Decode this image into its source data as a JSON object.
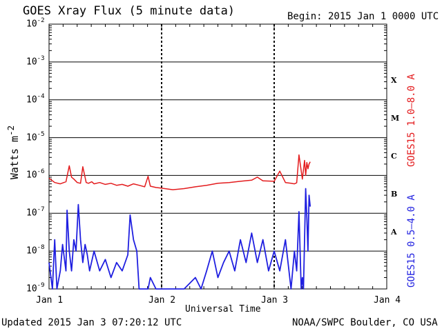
{
  "header": {
    "title": "GOES Xray Flux (5 minute data)",
    "begin": "Begin:  2015 Jan 1 0000 UTC"
  },
  "footer": {
    "updated": "Updated 2015 Jan  3 07:20:12 UTC",
    "credit": "NOAA/SWPC Boulder, CO USA"
  },
  "colors": {
    "long_channel": "#e31a1c",
    "short_channel": "#1f1fe0",
    "grid": "#000000",
    "background": "#ffffff"
  },
  "chart_data": {
    "type": "line",
    "title": "GOES Xray Flux (5 minute data)",
    "xlabel": "Universal Time",
    "ylabel": "Watts m-2",
    "y_scale": "log",
    "ylim": [
      1e-09,
      0.01
    ],
    "xlim_days": [
      0,
      3
    ],
    "x_tick_labels": [
      "Jan 1",
      "Jan 2",
      "Jan 3",
      "Jan 4"
    ],
    "y_tick_labels": [
      {
        "base": "10",
        "exp": "-2"
      },
      {
        "base": "10",
        "exp": "-3"
      },
      {
        "base": "10",
        "exp": "-4"
      },
      {
        "base": "10",
        "exp": "-5"
      },
      {
        "base": "10",
        "exp": "-6"
      },
      {
        "base": "10",
        "exp": "-7"
      },
      {
        "base": "10",
        "exp": "-8"
      },
      {
        "base": "10",
        "exp": "-9"
      }
    ],
    "flare_classes": [
      {
        "label": "X",
        "flux": 0.0001
      },
      {
        "label": "M",
        "flux": 1e-05
      },
      {
        "label": "C",
        "flux": 1e-06
      },
      {
        "label": "B",
        "flux": 1e-07
      },
      {
        "label": "A",
        "flux": 1e-08
      }
    ],
    "grid": true,
    "series": [
      {
        "name": "GOES15 1.0-8.0 A",
        "color": "#e31a1c",
        "x": [
          0.0,
          0.05,
          0.1,
          0.15,
          0.18,
          0.2,
          0.22,
          0.25,
          0.28,
          0.3,
          0.33,
          0.35,
          0.38,
          0.4,
          0.45,
          0.5,
          0.55,
          0.6,
          0.65,
          0.7,
          0.75,
          0.8,
          0.85,
          0.88,
          0.9,
          0.95,
          1.0,
          1.05,
          1.1,
          1.2,
          1.3,
          1.4,
          1.5,
          1.6,
          1.7,
          1.8,
          1.85,
          1.9,
          2.0,
          2.05,
          2.1,
          2.15,
          2.18,
          2.2,
          2.22,
          2.25,
          2.27,
          2.28,
          2.29,
          2.3,
          2.31,
          2.32
        ],
        "y": [
          8.5e-07,
          6.5e-07,
          6e-07,
          6.8e-07,
          1.8e-06,
          9e-07,
          8e-07,
          6.5e-07,
          6.2e-07,
          1.7e-06,
          6.5e-07,
          6.2e-07,
          6.8e-07,
          6e-07,
          6.5e-07,
          5.8e-07,
          6.2e-07,
          5.5e-07,
          5.8e-07,
          5.2e-07,
          6e-07,
          5.5e-07,
          5e-07,
          9.5e-07,
          5.2e-07,
          4.8e-07,
          4.6e-07,
          4.4e-07,
          4.2e-07,
          4.5e-07,
          5e-07,
          5.5e-07,
          6.2e-07,
          6.5e-07,
          7e-07,
          7.5e-07,
          9e-07,
          7.2e-07,
          7e-07,
          1.3e-06,
          6.5e-07,
          6.2e-07,
          6e-07,
          6.4e-07,
          3.5e-06,
          8e-07,
          2.5e-06,
          1e-06,
          2.2e-06,
          1.5e-06,
          2e-06,
          2.3e-06
        ]
      },
      {
        "name": "GOES15 0.5-4.0 A",
        "color": "#1f1fe0",
        "x": [
          0.0,
          0.03,
          0.05,
          0.07,
          0.1,
          0.12,
          0.15,
          0.16,
          0.18,
          0.2,
          0.22,
          0.24,
          0.26,
          0.28,
          0.3,
          0.32,
          0.34,
          0.36,
          0.4,
          0.45,
          0.5,
          0.55,
          0.6,
          0.65,
          0.7,
          0.72,
          0.75,
          0.78,
          0.8,
          0.82,
          0.85,
          0.88,
          0.9,
          0.95,
          1.0,
          1.1,
          1.2,
          1.3,
          1.35,
          1.4,
          1.45,
          1.5,
          1.55,
          1.6,
          1.65,
          1.7,
          1.75,
          1.8,
          1.85,
          1.9,
          1.95,
          2.0,
          2.05,
          2.1,
          2.15,
          2.18,
          2.2,
          2.22,
          2.24,
          2.25,
          2.26,
          2.27,
          2.28,
          2.29,
          2.3,
          2.31,
          2.32
        ],
        "y": [
          5e-09,
          1e-09,
          2e-08,
          1e-09,
          3e-09,
          1.5e-08,
          3e-09,
          1.2e-07,
          1e-08,
          3e-09,
          2e-08,
          1e-08,
          1.7e-07,
          2e-08,
          5e-09,
          1.5e-08,
          8e-09,
          3e-09,
          1e-08,
          3e-09,
          6e-09,
          2e-09,
          5e-09,
          3e-09,
          8e-09,
          9e-08,
          2e-08,
          1e-08,
          1e-09,
          1e-09,
          1e-09,
          1e-09,
          2e-09,
          1e-09,
          1e-09,
          1e-09,
          1e-09,
          2e-09,
          1e-09,
          3e-09,
          1e-08,
          2e-09,
          5e-09,
          1e-08,
          3e-09,
          2e-08,
          5e-09,
          3e-08,
          5e-09,
          2e-08,
          3e-09,
          1e-08,
          3e-09,
          2e-08,
          1e-09,
          1e-08,
          3e-09,
          1.1e-07,
          1e-09,
          2e-09,
          1e-09,
          2e-08,
          4.5e-07,
          8e-08,
          1e-08,
          3e-07,
          1.5e-07
        ]
      }
    ]
  },
  "series_labels": {
    "red": "GOES15 1.0–8.0 A",
    "blue": "GOES15 0.5–4.0 A"
  }
}
